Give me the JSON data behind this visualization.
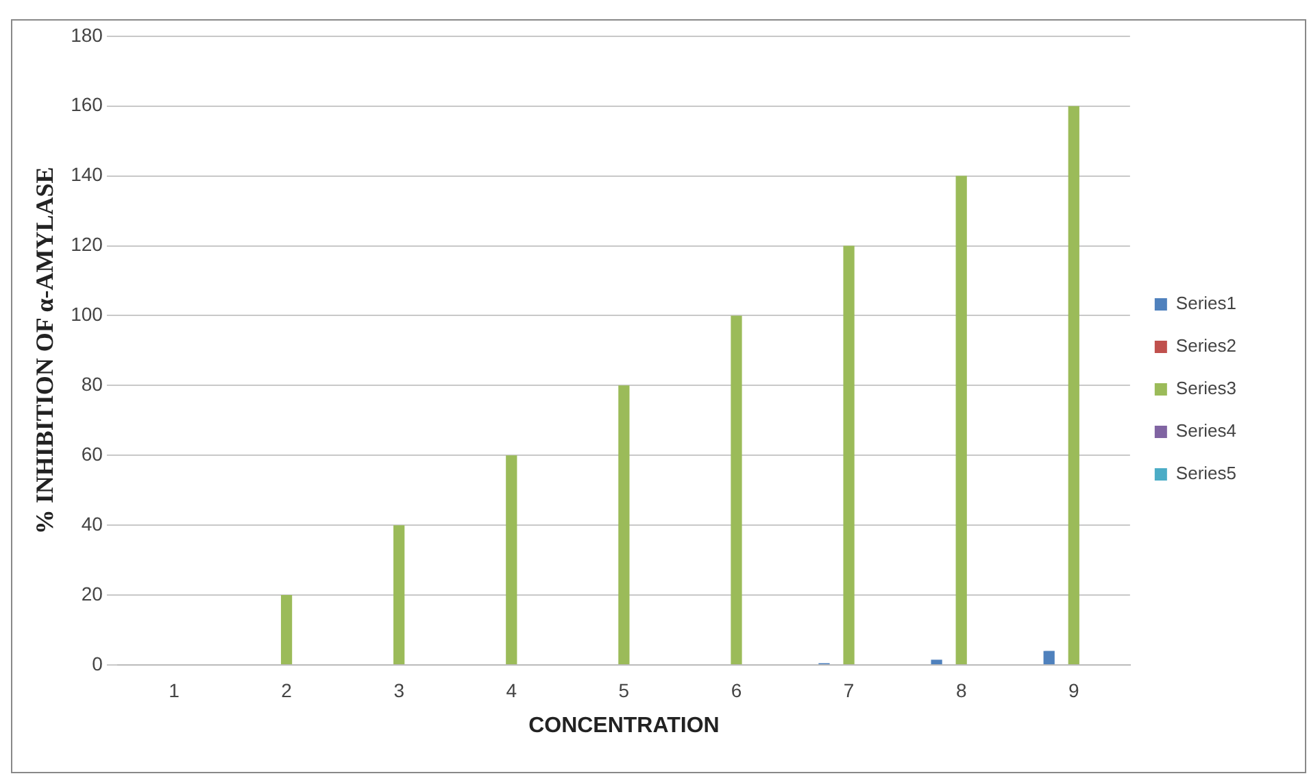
{
  "chart_data": {
    "type": "bar",
    "xlabel": "CONCENTRATION",
    "ylabel": "% INHIBITION OF α-AMYLASE",
    "categories": [
      "1",
      "2",
      "3",
      "4",
      "5",
      "6",
      "7",
      "8",
      "9"
    ],
    "series": [
      {
        "name": "Series1",
        "color": "#4f81bd",
        "values": [
          0,
          0,
          0,
          0,
          0,
          0,
          0.5,
          1.5,
          4
        ]
      },
      {
        "name": "Series2",
        "color": "#c0504d",
        "values": [
          0,
          0,
          0,
          0,
          0,
          0,
          0,
          0,
          0
        ]
      },
      {
        "name": "Series3",
        "color": "#9bbb59",
        "values": [
          0,
          20,
          40,
          60,
          80,
          100,
          120,
          140,
          160
        ]
      },
      {
        "name": "Series4",
        "color": "#8064a2",
        "values": [
          0,
          0,
          0,
          0,
          0,
          0,
          0,
          0,
          0
        ]
      },
      {
        "name": "Series5",
        "color": "#4bacc6",
        "values": [
          0,
          0,
          0,
          0,
          0,
          0,
          0,
          0,
          0
        ]
      }
    ],
    "ylim": [
      0,
      180
    ],
    "yticks": [
      0,
      20,
      40,
      60,
      80,
      100,
      120,
      140,
      160,
      180
    ],
    "grid": "y",
    "legend": "right"
  }
}
